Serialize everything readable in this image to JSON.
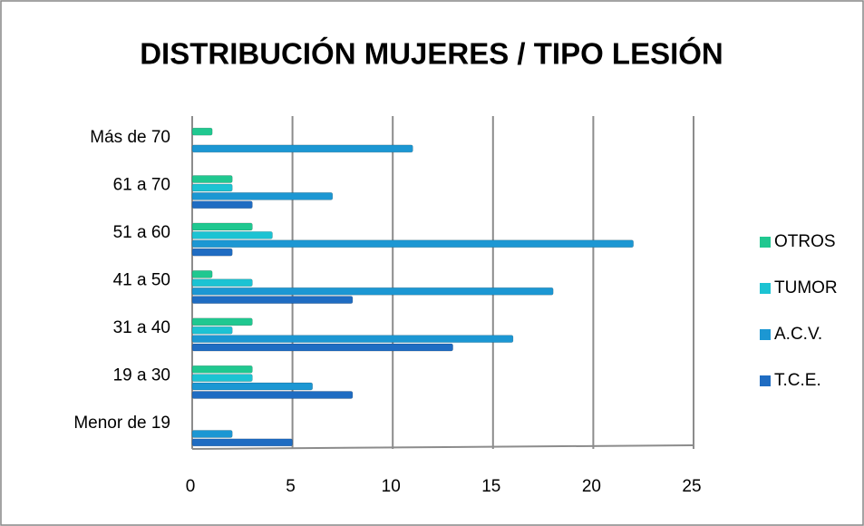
{
  "chart_data": {
    "type": "barh",
    "title": "DISTRIBUCIÓN MUJERES / TIPO LESIÓN",
    "categories": [
      "Menor de 19",
      "19 a 30",
      "31 a 40",
      "41 a 50",
      "51 a 60",
      "61 a 70",
      "Más de 70"
    ],
    "series": [
      {
        "name": "T.C.E.",
        "color": "#1f6cc2",
        "values": [
          5,
          8,
          13,
          8,
          2,
          3,
          0
        ]
      },
      {
        "name": "A.C.V.",
        "color": "#1c97d3",
        "values": [
          2,
          6,
          16,
          18,
          22,
          7,
          11
        ]
      },
      {
        "name": "TUMOR",
        "color": "#1cc3d3",
        "values": [
          0,
          3,
          2,
          3,
          4,
          2,
          0
        ]
      },
      {
        "name": "OTROS",
        "color": "#20c890",
        "values": [
          0,
          3,
          3,
          1,
          3,
          2,
          1
        ]
      }
    ],
    "xlim": [
      0,
      25
    ],
    "xticks": [
      0,
      5,
      10,
      15,
      20,
      25
    ],
    "grid": true,
    "legend_position": "right"
  }
}
